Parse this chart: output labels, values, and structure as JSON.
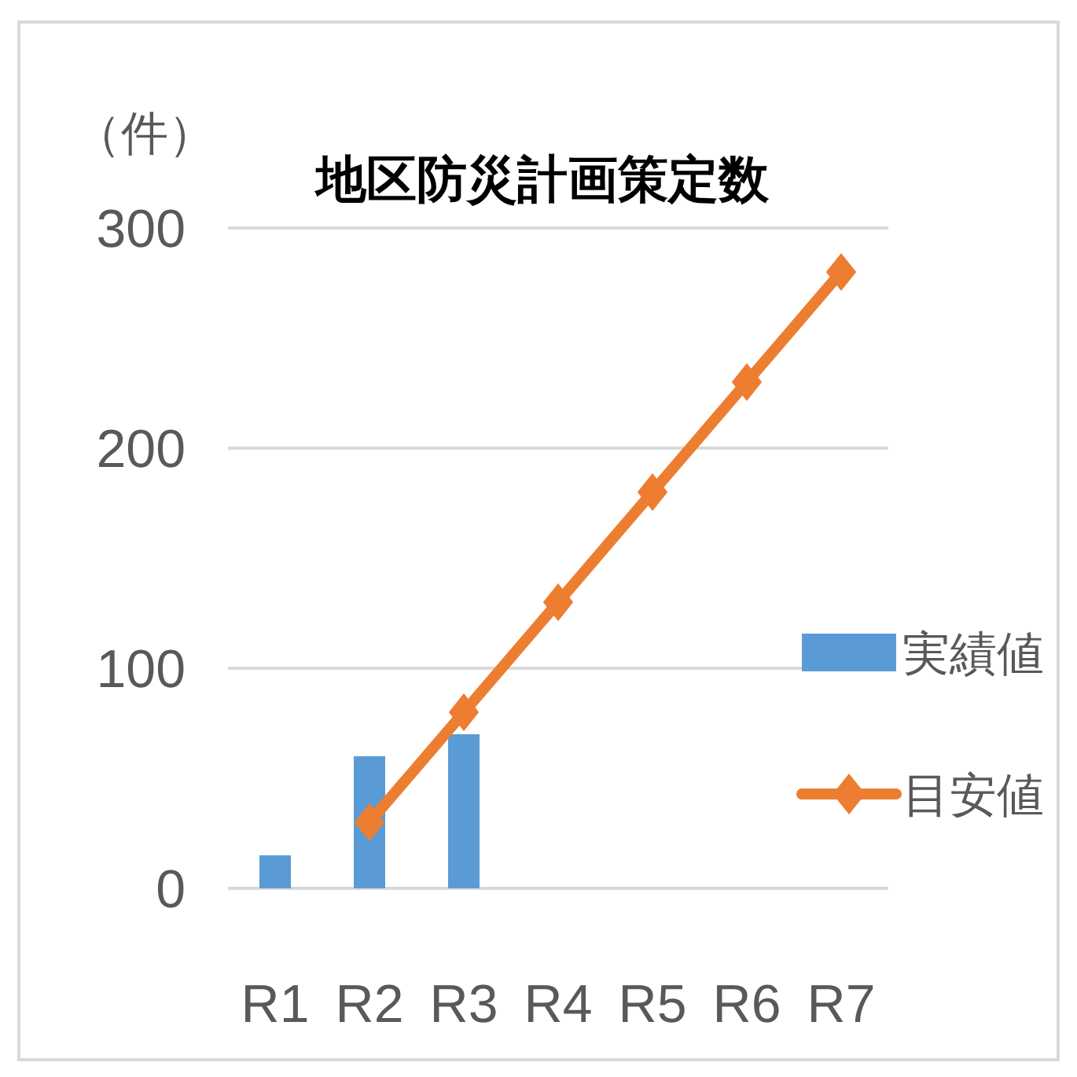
{
  "chart_data": {
    "type": "bar",
    "title": "地区防災計画策定数",
    "ylabel": "（件）",
    "categories": [
      "R1",
      "R2",
      "R3",
      "R4",
      "R5",
      "R6",
      "R7"
    ],
    "series": [
      {
        "name": "実績値",
        "color": "#5b9bd5",
        "values": [
          15,
          60,
          70,
          null,
          null,
          null,
          null
        ]
      },
      {
        "name": "目安値",
        "type": "line",
        "color": "#ed7d31",
        "marker": "diamond",
        "values": [
          null,
          30,
          80,
          130,
          180,
          230,
          280
        ]
      }
    ],
    "ylim": [
      0,
      300
    ],
    "yticks": [
      0,
      100,
      200,
      300
    ],
    "grid": "y",
    "legend": "right"
  }
}
